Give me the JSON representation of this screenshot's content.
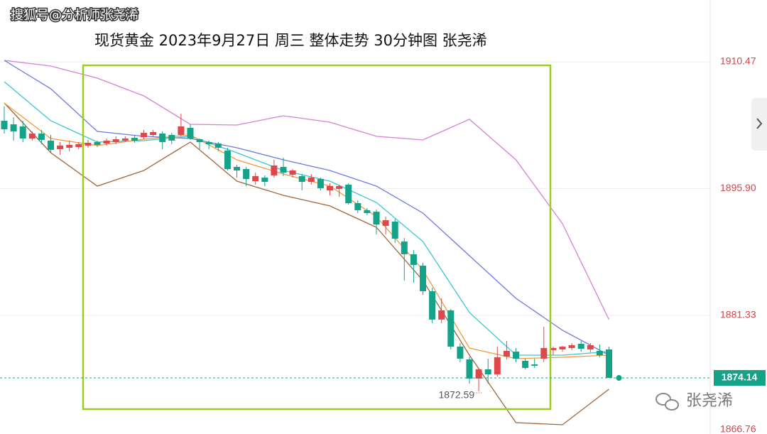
{
  "chart_data": {
    "type": "candlestick",
    "watermark": "搜狐号@分析师张尧浠",
    "title": "现货黄金 2023年9月27日 周三 整体走势 30分钟图  张尧浠",
    "brand": "张尧浠",
    "up_color": "#e0474c",
    "down_color": "#14a389",
    "ylim": [
      1867.69,
      1917.57
    ],
    "yticks": [
      1910.47,
      {
        "value": 1895.9,
        "label": "1895.90"
      },
      1881.33,
      1866.76
    ],
    "grid": true,
    "last_price": 1874.14,
    "low_label": 1872.59,
    "open": [
      1903.69,
      1903.28,
      1903.04,
      1901.65,
      1902.22,
      1901.41,
      1900.43,
      1900.59,
      1900.67,
      1900.84,
      1901.24,
      1901.08,
      1901.24,
      1901.41,
      1901.73,
      1901.81,
      1902.06,
      1902.22,
      1902.06,
      1902.06,
      1902.88,
      1901.57,
      1901.24,
      1901.08,
      1900.26,
      1898.39,
      1898.14,
      1896.75,
      1897.16,
      1897.41,
      1898.39,
      1897.49,
      1897.33,
      1896.67,
      1897.0,
      1895.69,
      1895.86,
      1896.35,
      1894.22,
      1893.41,
      1893.24,
      1891.61,
      1892.1,
      1889.81,
      1888.35,
      1887.04,
      1884.1,
      1880.84,
      1881.9,
      1877.73,
      1876.26,
      1874.06,
      1875.12,
      1874.55,
      1876.59,
      1877.16,
      1876.1,
      1875.69,
      1876.35,
      1877.33,
      1877.41,
      1877.57,
      1878.06,
      1877.41,
      1877.24,
      1877.41
    ],
    "high": [
      1905.33,
      1904.1,
      1903.69,
      1902.47,
      1902.63,
      1902.06,
      1901.24,
      1901.41,
      1901.24,
      1901.49,
      1901.41,
      1901.65,
      1901.9,
      1901.9,
      1902.06,
      1902.63,
      1902.63,
      1902.47,
      1902.3,
      1904.51,
      1903.28,
      1901.65,
      1901.41,
      1901.24,
      1900.59,
      1898.63,
      1898.39,
      1897.73,
      1897.41,
      1899.2,
      1899.45,
      1898.14,
      1897.57,
      1897.57,
      1897.16,
      1896.51,
      1896.35,
      1896.51,
      1894.55,
      1893.65,
      1893.49,
      1892.67,
      1892.43,
      1890.22,
      1888.84,
      1887.37,
      1884.51,
      1883.28,
      1882.06,
      1878.14,
      1876.59,
      1875.28,
      1876.35,
      1877.73,
      1878.39,
      1877.57,
      1876.35,
      1876.35,
      1880.02,
      1877.73,
      1877.81,
      1878.14,
      1878.39,
      1878.14,
      1877.98,
      1877.73
    ],
    "low": [
      1902.22,
      1901.41,
      1901.24,
      1901.41,
      1901.0,
      1900.02,
      1899.77,
      1900.18,
      1900.43,
      1900.59,
      1900.67,
      1900.84,
      1901.0,
      1901.24,
      1901.16,
      1901.57,
      1901.9,
      1900.43,
      1901.0,
      1901.9,
      1901.49,
      1900.43,
      1900.43,
      1900.18,
      1897.98,
      1897.16,
      1896.18,
      1896.35,
      1896.18,
      1897.16,
      1897.33,
      1897.16,
      1895.69,
      1896.35,
      1895.69,
      1895.12,
      1894.96,
      1894.06,
      1893.08,
      1892.84,
      1890.63,
      1890.63,
      1889.65,
      1885.33,
      1885.08,
      1883.69,
      1880.43,
      1880.43,
      1877.41,
      1875.94,
      1873.49,
      1872.59,
      1873.49,
      1874.3,
      1876.26,
      1875.94,
      1875.12,
      1875.28,
      1875.94,
      1876.75,
      1877.16,
      1877.33,
      1877.16,
      1877.08,
      1876.51,
      1874.47
    ],
    "close": [
      1902.71,
      1902.47,
      1901.65,
      1902.22,
      1901.49,
      1900.35,
      1900.84,
      1900.92,
      1901.0,
      1901.16,
      1900.92,
      1901.41,
      1901.57,
      1901.65,
      1901.41,
      1902.3,
      1902.39,
      1901.24,
      1901.41,
      1903.04,
      1901.65,
      1901.24,
      1901.0,
      1900.59,
      1898.14,
      1897.98,
      1897.0,
      1897.33,
      1896.67,
      1898.55,
      1897.73,
      1897.98,
      1896.67,
      1897.16,
      1895.94,
      1896.18,
      1896.18,
      1894.22,
      1893.41,
      1893.08,
      1891.77,
      1892.26,
      1890.14,
      1888.35,
      1887.12,
      1884.1,
      1880.84,
      1881.9,
      1877.73,
      1876.35,
      1874.06,
      1875.12,
      1874.55,
      1876.51,
      1877.24,
      1876.35,
      1875.28,
      1875.53,
      1877.57,
      1877.57,
      1877.73,
      1877.9,
      1877.49,
      1877.9,
      1876.75,
      1874.14
    ],
    "lines": [
      {
        "color": "#d77fd6",
        "x": [
          0,
          5,
          10,
          15,
          20,
          25,
          30,
          35,
          40,
          45,
          50,
          55,
          60,
          65
        ],
        "values": [
          1910.63,
          1909.98,
          1908.59,
          1906.55,
          1903.28,
          1903.2,
          1904.26,
          1903.53,
          1901.9,
          1901.49,
          1903.86,
          1899.2,
          1891.86,
          1880.84
        ]
      },
      {
        "color": "#a0663a",
        "x": [
          0,
          5,
          10,
          15,
          20,
          25,
          30,
          35,
          40,
          45,
          50,
          55,
          60,
          65
        ],
        "values": [
          1905.73,
          1900.02,
          1896.18,
          1897.98,
          1901.24,
          1896.75,
          1895.12,
          1893.9,
          1891.45,
          1885.33,
          1876.75,
          1869.0,
          1868.75,
          1872.84
        ]
      },
      {
        "color": "#6f78e0",
        "x": [
          0,
          5,
          10,
          15,
          20,
          25,
          30,
          35,
          40,
          45,
          50,
          55,
          60,
          65
        ],
        "values": [
          1910.63,
          1907.37,
          1902.47,
          1901.9,
          1901.65,
          1900.59,
          1899.2,
          1897.98,
          1896.18,
          1893.08,
          1888.18,
          1883.28,
          1879.61,
          1876.75
        ]
      },
      {
        "color": "#3cc6d0",
        "x": [
          0,
          5,
          10,
          15,
          20,
          25,
          30,
          35,
          40,
          45,
          50,
          55,
          60,
          65
        ],
        "values": [
          1908.18,
          1903.69,
          1901.24,
          1901.41,
          1901.9,
          1900.02,
          1897.98,
          1896.75,
          1894.3,
          1889.81,
          1881.65,
          1876.75,
          1876.75,
          1877.16
        ]
      },
      {
        "color": "#f29a3c",
        "x": [
          0,
          5,
          10,
          15,
          20,
          25,
          30,
          35,
          40,
          45,
          50,
          55,
          60,
          65
        ],
        "values": [
          1905.73,
          1901.65,
          1900.84,
          1901.57,
          1902.06,
          1899.2,
          1897.57,
          1896.18,
          1892.67,
          1886.55,
          1877.57,
          1876.35,
          1876.51,
          1876.75
        ]
      }
    ]
  }
}
